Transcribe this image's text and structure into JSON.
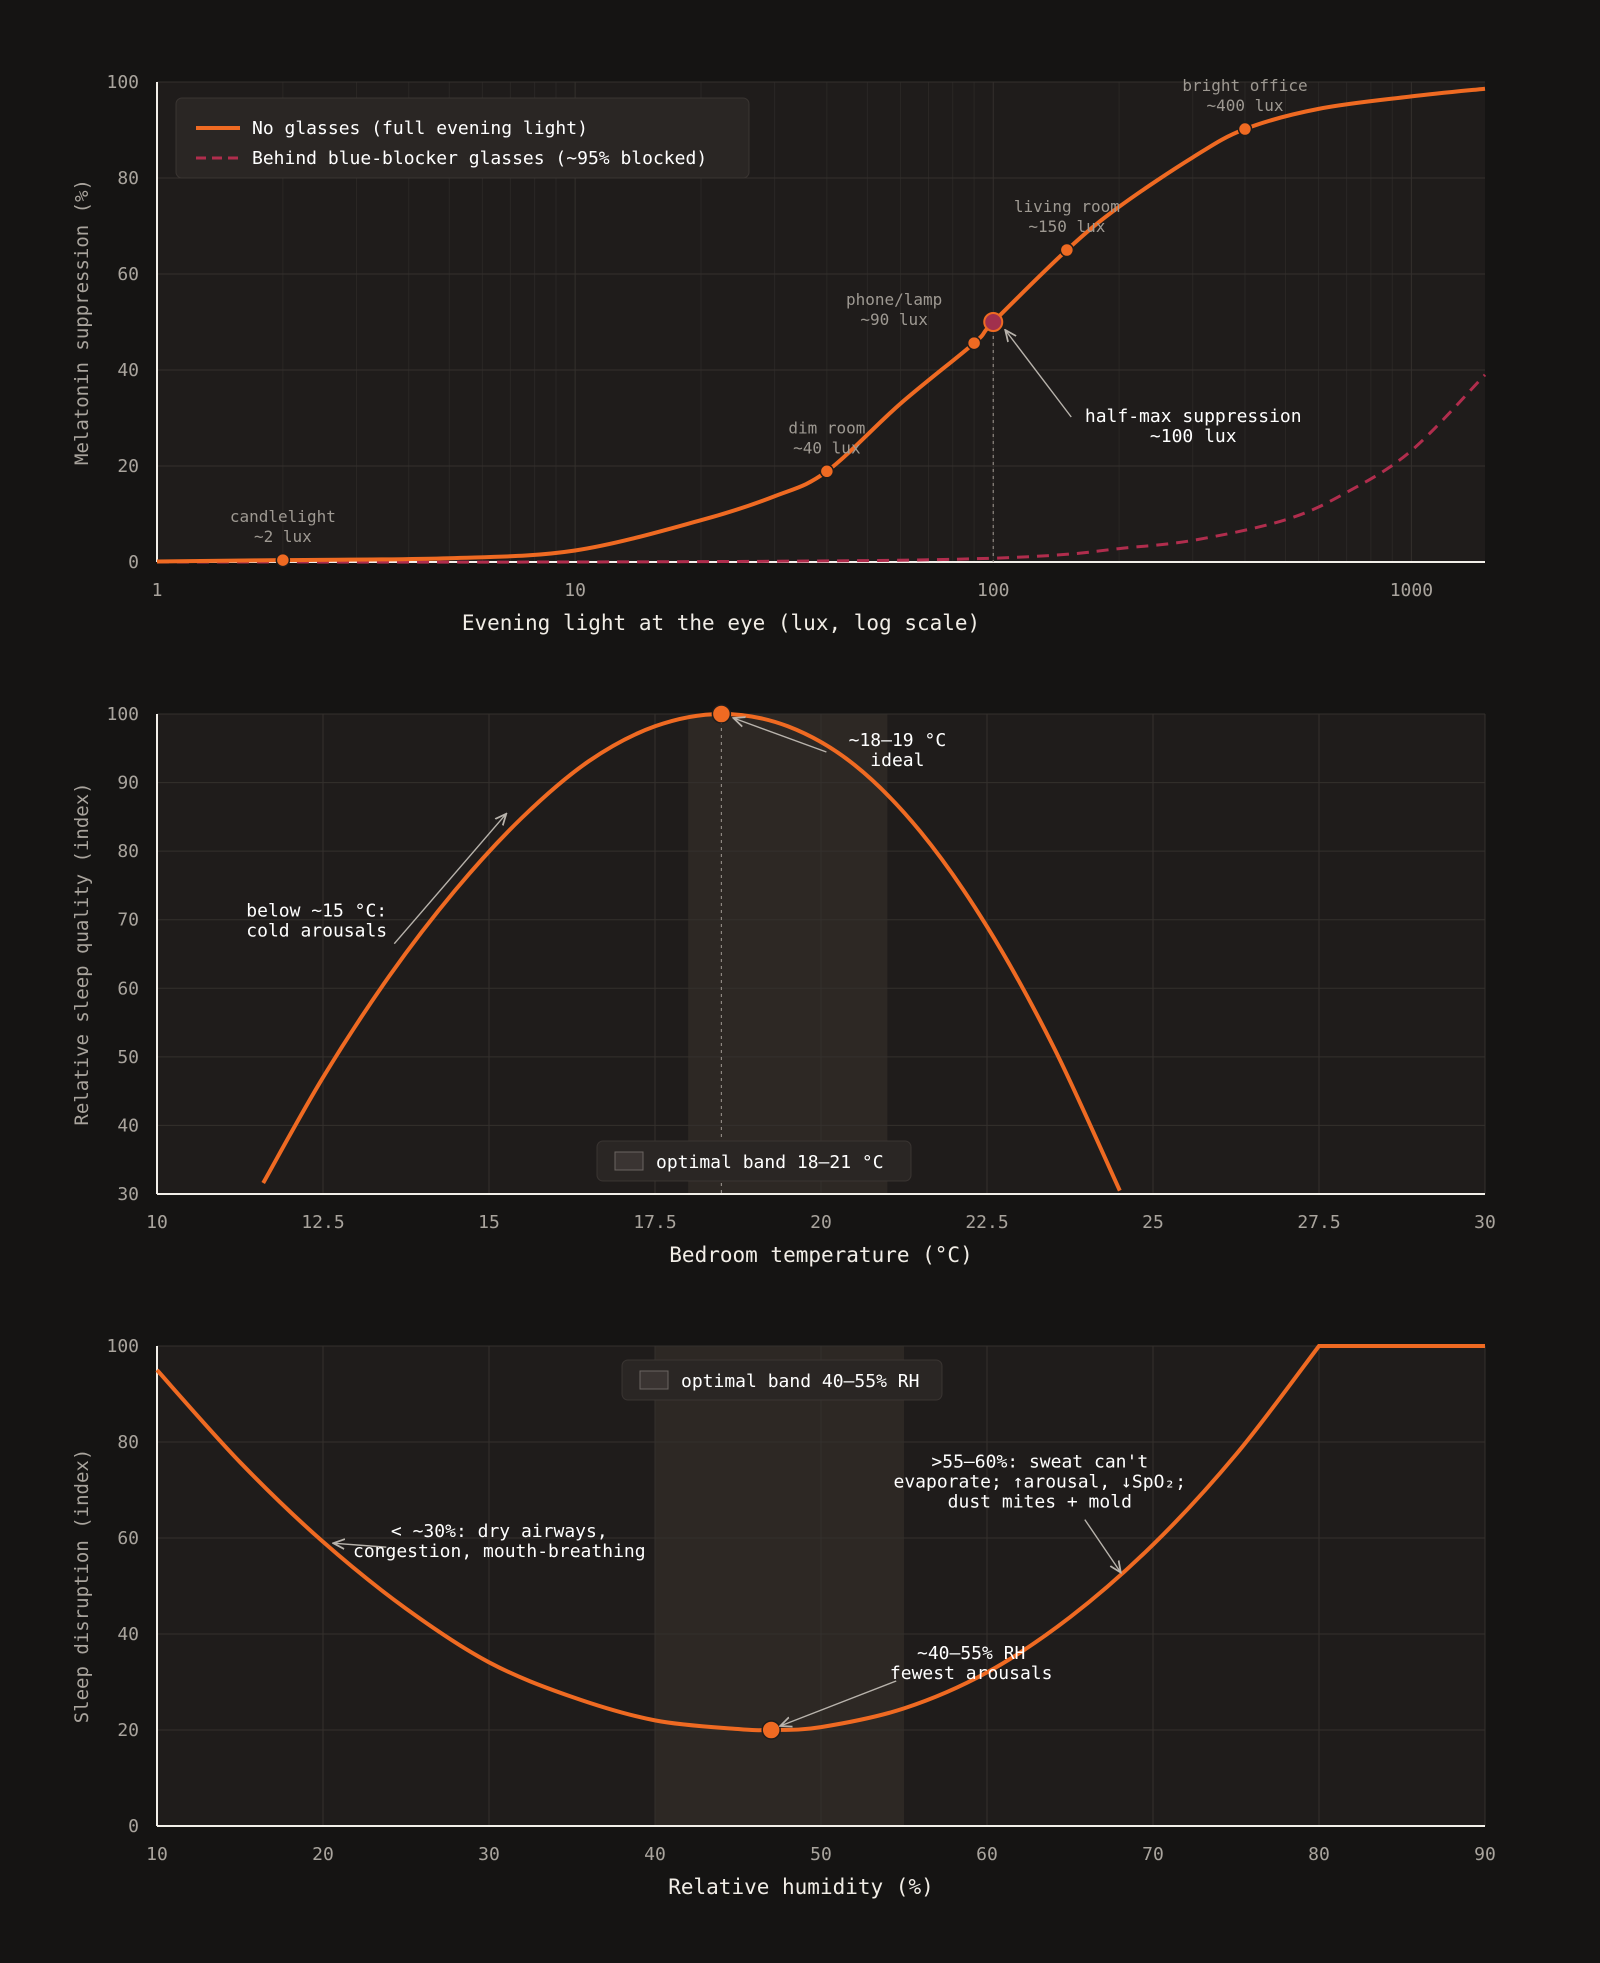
{
  "colors": {
    "background": "#151413",
    "plot_bg": "#1f1c1b",
    "grid": "#34302d",
    "axis": "#f2efe9",
    "main_line": "#ef6a22",
    "secondary_line": "#b02d4d",
    "highlight_marker": "#a1304d",
    "band": "#2d2824",
    "tick_text": "#a9a49d",
    "annotation_text": "#ffffff",
    "muted_label": "#9e9992"
  },
  "chart_data": [
    {
      "type": "line",
      "xscale": "log",
      "xlabel": "Evening light at the eye (lux, log scale)",
      "ylabel": "Melatonin suppression (%)",
      "xlim": [
        1,
        1500
      ],
      "ylim": [
        0,
        100
      ],
      "xticks": [
        1,
        10,
        100,
        1000
      ],
      "xtick_labels": [
        "1",
        "10",
        "100",
        "1000"
      ],
      "yticks": [
        0,
        20,
        40,
        60,
        80,
        100
      ],
      "ytick_labels": [
        "0",
        "20",
        "40",
        "60",
        "80",
        "100"
      ],
      "grid": true,
      "legend_position": "top-left",
      "series": [
        {
          "name": "No glasses (full evening light)",
          "style": "solid",
          "x": [
            1,
            2,
            5,
            10,
            20,
            30,
            40,
            60,
            90,
            100,
            150,
            200,
            300,
            400,
            600,
            1000,
            1500
          ],
          "y": [
            0.1,
            0.4,
            0.8,
            2.4,
            8.7,
            13.7,
            18.9,
            33.0,
            45.6,
            50.0,
            65.0,
            74.0,
            84.3,
            90.2,
            94.4,
            97.0,
            98.6
          ]
        },
        {
          "name": "Behind blue-blocker glasses (~95% blocked)",
          "style": "dashed",
          "x": [
            1,
            10,
            50,
            100,
            150,
            200,
            300,
            500,
            700,
            1000,
            1500
          ],
          "y": [
            0.0,
            0.0,
            0.3,
            0.8,
            1.6,
            2.8,
            4.5,
            8.8,
            14.5,
            23.2,
            39.0
          ]
        }
      ],
      "markers": [
        {
          "label": "candlelight\n~2 lux",
          "x": 2,
          "y": 0.4
        },
        {
          "label": "dim room\n~40 lux",
          "x": 40,
          "y": 18.9
        },
        {
          "label": "phone/lamp\n~90 lux",
          "x": 90,
          "y": 45.6
        },
        {
          "label": "living room\n~150 lux",
          "x": 150,
          "y": 65.0
        },
        {
          "label": "bright office\n~400 lux",
          "x": 400,
          "y": 90.2
        }
      ],
      "highlight": {
        "x": 100,
        "y": 50
      },
      "annotations": [
        {
          "text": "half-max suppression\n~100 lux",
          "point": [
            100,
            50
          ]
        }
      ]
    },
    {
      "type": "line",
      "xlabel": "Bedroom temperature (°C)",
      "ylabel": "Relative sleep quality (index)",
      "xlim": [
        10,
        30
      ],
      "ylim": [
        30,
        100
      ],
      "xticks": [
        10,
        12.5,
        15,
        17.5,
        20,
        22.5,
        25,
        27.5,
        30
      ],
      "xtick_labels": [
        "10",
        "12.5",
        "15",
        "17.5",
        "20",
        "22.5",
        "25",
        "27.5",
        "30"
      ],
      "yticks": [
        30,
        40,
        50,
        60,
        70,
        80,
        90,
        100
      ],
      "ytick_labels": [
        "30",
        "40",
        "50",
        "60",
        "70",
        "80",
        "90",
        "100"
      ],
      "grid": true,
      "band": {
        "x": [
          18,
          21
        ],
        "label": "optimal band 18–21 °C"
      },
      "series": [
        {
          "name": "",
          "style": "solid",
          "x": [
            11.6,
            12.5,
            13.5,
            14.5,
            15.5,
            16.5,
            17.5,
            18.5,
            19.5,
            20.5,
            21.5,
            22.5,
            23.5,
            24.5
          ],
          "y": [
            31.6,
            47.0,
            61.8,
            74.4,
            84.9,
            93.1,
            98.2,
            100.0,
            98.2,
            92.6,
            82.8,
            69.0,
            51.5,
            30.5
          ]
        }
      ],
      "peak": {
        "x": 18.5,
        "y": 100
      },
      "annotations": [
        {
          "text": "~18–19 °C\nideal",
          "point": [
            18.5,
            100
          ]
        },
        {
          "text": "below ~15 °C:\ncold arousals",
          "point": [
            15.2,
            84.0
          ]
        }
      ]
    },
    {
      "type": "line",
      "xlabel": "Relative humidity (%)",
      "ylabel": "Sleep disruption (index)",
      "xlim": [
        10,
        90
      ],
      "ylim": [
        0,
        100
      ],
      "xticks": [
        10,
        20,
        30,
        40,
        50,
        60,
        70,
        80,
        90
      ],
      "xtick_labels": [
        "10",
        "20",
        "30",
        "40",
        "50",
        "60",
        "70",
        "80",
        "90"
      ],
      "yticks": [
        0,
        20,
        40,
        60,
        80,
        100
      ],
      "ytick_labels": [
        "0",
        "20",
        "40",
        "60",
        "80",
        "100"
      ],
      "grid": true,
      "band": {
        "x": [
          40,
          55
        ],
        "label": "optimal band 40–55% RH"
      },
      "series": [
        {
          "name": "",
          "style": "solid",
          "x": [
            10,
            15,
            20,
            25,
            30,
            35,
            40,
            45,
            47,
            50,
            55,
            60,
            65,
            70,
            75,
            80,
            90
          ],
          "y": [
            95.0,
            75.8,
            59.2,
            45.3,
            34.1,
            26.9,
            22.0,
            20.2,
            20.0,
            20.6,
            24.5,
            32.0,
            43.5,
            58.6,
            77.4,
            100.0,
            100.0
          ]
        }
      ],
      "minimum": {
        "x": 47,
        "y": 20
      },
      "annotations": [
        {
          "text": "< ~30%: dry airways,\ncongestion, mouth-breathing",
          "point": [
            20.5,
            58.5
          ]
        },
        {
          "text": ">55–60%: sweat can't\nevaporate; ↑arousal, ↓SpO₂;\ndust mites + mold",
          "point": [
            68,
            53
          ]
        },
        {
          "text": "~40–55% RH\nfewest arousals",
          "point": [
            47.5,
            21
          ]
        }
      ]
    }
  ]
}
